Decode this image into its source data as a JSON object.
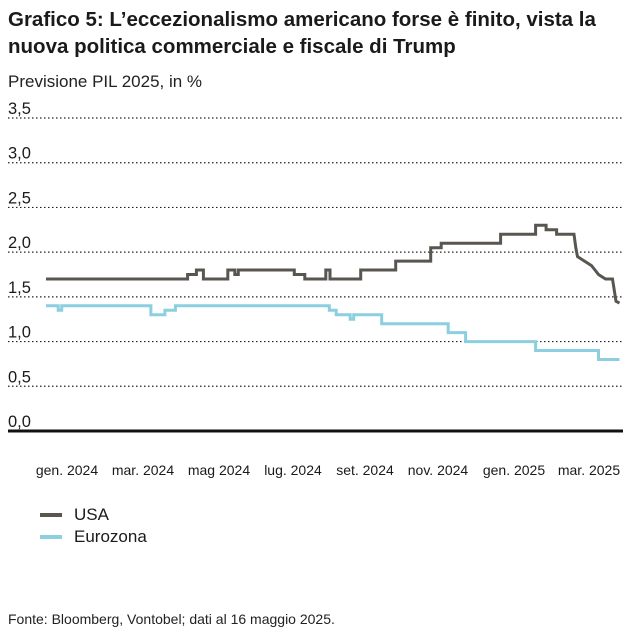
{
  "chart_data": {
    "type": "line",
    "title": "Grafico 5: L’eccezionalismo americano forse è finito, vista la nuova politica commerciale e fiscale di Trump",
    "subtitle": "Previsione PIL 2025, in %",
    "source": "Fonte: Bloomberg, Vontobel; dati al 16 maggio 2025.",
    "x_tick_labels": [
      "gen. 2024",
      "mar. 2024",
      "mag 2024",
      "lug. 2024",
      "set. 2024",
      "nov. 2024",
      "gen. 2025",
      "mar. 2025"
    ],
    "y_tick_labels": [
      "0,0",
      "0,5",
      "1,0",
      "1,5",
      "2,0",
      "2,5",
      "3,0",
      "3,5"
    ],
    "y_ticks": [
      0,
      0.5,
      1.0,
      1.5,
      2.0,
      2.5,
      3.0,
      3.5
    ],
    "ylim": [
      0,
      3.5
    ],
    "xlim": [
      0,
      16.5
    ],
    "grid": true,
    "legend_position": "bottom-left",
    "series": [
      {
        "name": "USA",
        "color": "#595650",
        "points": [
          [
            0.0,
            1.7
          ],
          [
            4.05,
            1.7
          ],
          [
            4.05,
            1.75
          ],
          [
            4.3,
            1.75
          ],
          [
            4.3,
            1.8
          ],
          [
            4.5,
            1.8
          ],
          [
            4.5,
            1.7
          ],
          [
            5.2,
            1.7
          ],
          [
            5.2,
            1.8
          ],
          [
            5.4,
            1.8
          ],
          [
            5.4,
            1.75
          ],
          [
            5.5,
            1.75
          ],
          [
            5.5,
            1.8
          ],
          [
            7.1,
            1.8
          ],
          [
            7.1,
            1.75
          ],
          [
            7.4,
            1.75
          ],
          [
            7.4,
            1.7
          ],
          [
            8.0,
            1.7
          ],
          [
            8.0,
            1.8
          ],
          [
            8.12,
            1.8
          ],
          [
            8.12,
            1.7
          ],
          [
            9.0,
            1.7
          ],
          [
            9.0,
            1.8
          ],
          [
            10.0,
            1.8
          ],
          [
            10.0,
            1.9
          ],
          [
            11.0,
            1.9
          ],
          [
            11.0,
            2.05
          ],
          [
            11.3,
            2.05
          ],
          [
            11.3,
            2.1
          ],
          [
            13.0,
            2.1
          ],
          [
            13.0,
            2.2
          ],
          [
            14.0,
            2.2
          ],
          [
            14.0,
            2.3
          ],
          [
            14.3,
            2.3
          ],
          [
            14.3,
            2.25
          ],
          [
            14.6,
            2.25
          ],
          [
            14.6,
            2.2
          ],
          [
            15.1,
            2.2
          ],
          [
            15.15,
            2.05
          ],
          [
            15.2,
            1.95
          ],
          [
            15.4,
            1.9
          ],
          [
            15.6,
            1.85
          ],
          [
            15.7,
            1.8
          ],
          [
            15.8,
            1.75
          ],
          [
            16.0,
            1.7
          ],
          [
            16.2,
            1.7
          ],
          [
            16.3,
            1.45
          ],
          [
            16.4,
            1.43
          ]
        ]
      },
      {
        "name": "Eurozona",
        "color": "#8ccfe0",
        "points": [
          [
            0.0,
            1.4
          ],
          [
            0.35,
            1.4
          ],
          [
            0.35,
            1.35
          ],
          [
            0.45,
            1.35
          ],
          [
            0.45,
            1.4
          ],
          [
            3.0,
            1.4
          ],
          [
            3.0,
            1.3
          ],
          [
            3.4,
            1.3
          ],
          [
            3.4,
            1.35
          ],
          [
            3.7,
            1.35
          ],
          [
            3.7,
            1.4
          ],
          [
            8.1,
            1.4
          ],
          [
            8.1,
            1.35
          ],
          [
            8.3,
            1.35
          ],
          [
            8.3,
            1.3
          ],
          [
            8.7,
            1.3
          ],
          [
            8.7,
            1.25
          ],
          [
            8.8,
            1.25
          ],
          [
            8.8,
            1.3
          ],
          [
            9.6,
            1.3
          ],
          [
            9.6,
            1.2
          ],
          [
            11.5,
            1.2
          ],
          [
            11.5,
            1.1
          ],
          [
            12.0,
            1.1
          ],
          [
            12.0,
            1.0
          ],
          [
            14.0,
            1.0
          ],
          [
            14.0,
            0.9
          ],
          [
            15.8,
            0.9
          ],
          [
            15.8,
            0.8
          ],
          [
            16.4,
            0.8
          ]
        ]
      }
    ]
  }
}
